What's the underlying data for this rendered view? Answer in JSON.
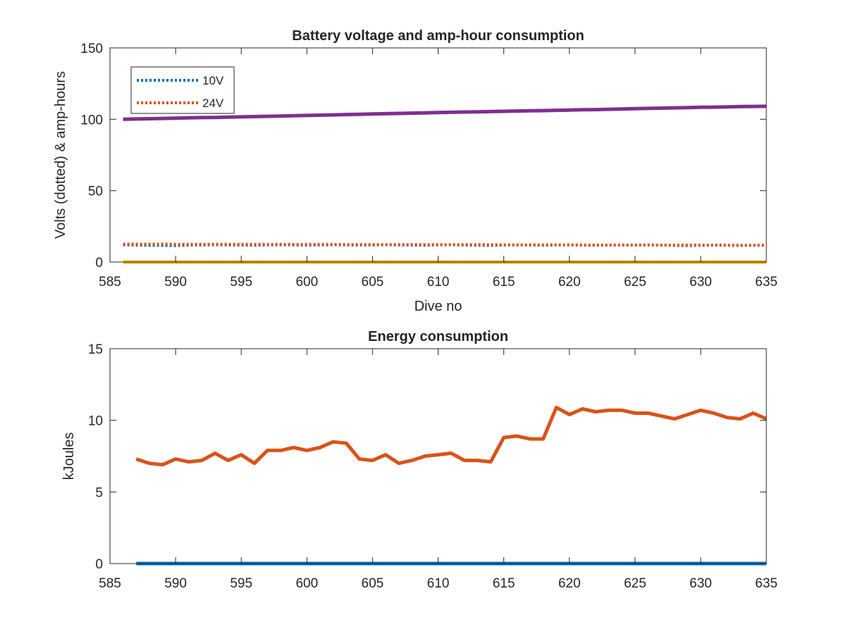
{
  "chart_data": [
    {
      "type": "line",
      "title": "Battery voltage and amp-hour consumption",
      "xlabel": "Dive no",
      "ylabel": "Volts (dotted) & amp-hours",
      "xlim": [
        585,
        635
      ],
      "ylim": [
        0,
        150
      ],
      "xticks": [
        "585",
        "590",
        "595",
        "600",
        "605",
        "610",
        "615",
        "620",
        "625",
        "630",
        "635"
      ],
      "yticks": [
        "0",
        "50",
        "100",
        "150"
      ],
      "grid": false,
      "legend_location": "top-left",
      "x": [
        586,
        587,
        588,
        589,
        590,
        591,
        592,
        593,
        594,
        595,
        596,
        597,
        598,
        599,
        600,
        601,
        602,
        603,
        604,
        605,
        606,
        607,
        608,
        609,
        610,
        611,
        612,
        613,
        614,
        615,
        616,
        617,
        618,
        619,
        620,
        621,
        622,
        623,
        624,
        625,
        626,
        627,
        628,
        629,
        630,
        631,
        632,
        633,
        634,
        635
      ],
      "series": [
        {
          "name": "10V",
          "color": "#0072BD",
          "style": "dotted",
          "values": [
            12.1,
            11.9,
            11.7,
            11.6,
            11.5,
            11.9,
            12.0,
            12.1,
            12.0,
            11.9,
            11.8,
            12.0,
            12.1,
            12.0,
            11.9,
            12.0,
            12.1,
            12.0,
            11.9,
            12.0,
            12.1,
            12.0,
            11.9,
            11.8,
            12.0,
            12.1,
            11.9,
            11.8,
            11.6,
            11.9,
            12.0,
            11.9,
            11.8,
            11.9,
            12.0,
            11.8,
            11.7,
            11.8,
            11.9,
            11.8,
            12.0,
            11.8,
            11.6,
            11.5,
            11.7,
            11.8,
            11.7,
            11.6,
            11.7,
            11.8
          ]
        },
        {
          "name": "24V",
          "color": "#D95319",
          "style": "dotted",
          "values": [
            12.6,
            12.6,
            12.6,
            12.6,
            12.5,
            12.5,
            12.5,
            12.5,
            12.5,
            12.5,
            12.5,
            12.4,
            12.4,
            12.4,
            12.4,
            12.4,
            12.4,
            12.3,
            12.3,
            12.3,
            12.3,
            12.3,
            12.3,
            12.2,
            12.2,
            12.2,
            12.2,
            12.2,
            12.2,
            12.1,
            12.1,
            12.1,
            12.1,
            12.1,
            12.1,
            12.0,
            12.0,
            12.0,
            12.0,
            12.0,
            12.0,
            11.9,
            11.9,
            11.9,
            11.9,
            11.9,
            11.9,
            11.8,
            11.8,
            11.8
          ]
        },
        {
          "color": "#EDB120",
          "style": "solid",
          "values": [
            0,
            0,
            0,
            0,
            0,
            0,
            0,
            0,
            0,
            0,
            0,
            0,
            0,
            0,
            0,
            0,
            0,
            0,
            0,
            0,
            0,
            0,
            0,
            0,
            0,
            0,
            0,
            0,
            0,
            0,
            0,
            0,
            0,
            0,
            0,
            0,
            0,
            0,
            0,
            0,
            0,
            0,
            0,
            0,
            0,
            0,
            0,
            0,
            0,
            0
          ]
        },
        {
          "color": "#7E2F8E",
          "style": "solid",
          "values": [
            100.0,
            100.2,
            100.4,
            100.6,
            100.8,
            101.0,
            101.2,
            101.3,
            101.5,
            101.7,
            101.9,
            102.1,
            102.3,
            102.5,
            102.7,
            102.9,
            103.1,
            103.3,
            103.5,
            103.7,
            103.9,
            104.1,
            104.3,
            104.5,
            104.7,
            104.9,
            105.1,
            105.2,
            105.4,
            105.6,
            105.8,
            106.0,
            106.1,
            106.3,
            106.5,
            106.7,
            106.8,
            107.0,
            107.2,
            107.4,
            107.6,
            107.8,
            108.0,
            108.2,
            108.4,
            108.5,
            108.7,
            108.9,
            109.0,
            109.1
          ]
        }
      ]
    },
    {
      "type": "line",
      "title": "Energy consumption",
      "xlabel": "",
      "ylabel": "kJoules",
      "xlim": [
        585,
        635
      ],
      "ylim": [
        0,
        15
      ],
      "xticks": [
        "585",
        "590",
        "595",
        "600",
        "605",
        "610",
        "615",
        "620",
        "625",
        "630",
        "635"
      ],
      "yticks": [
        "0",
        "5",
        "10",
        "15"
      ],
      "grid": false,
      "x": [
        587,
        588,
        589,
        590,
        591,
        592,
        593,
        594,
        595,
        596,
        597,
        598,
        599,
        600,
        601,
        602,
        603,
        604,
        605,
        606,
        607,
        608,
        609,
        610,
        611,
        612,
        613,
        614,
        615,
        616,
        617,
        618,
        619,
        620,
        621,
        622,
        623,
        624,
        625,
        626,
        627,
        628,
        629,
        630,
        631,
        632,
        633,
        634,
        635
      ],
      "series": [
        {
          "color": "#D95319",
          "style": "solid",
          "values": [
            7.3,
            7.0,
            6.9,
            7.3,
            7.1,
            7.2,
            7.7,
            7.2,
            7.6,
            7.0,
            7.9,
            7.9,
            8.1,
            7.9,
            8.1,
            8.5,
            8.4,
            7.3,
            7.2,
            7.6,
            7.0,
            7.2,
            7.5,
            7.6,
            7.7,
            7.2,
            7.2,
            7.1,
            8.8,
            8.9,
            8.7,
            8.7,
            10.9,
            10.4,
            10.8,
            10.6,
            10.7,
            10.7,
            10.5,
            10.5,
            10.3,
            10.1,
            10.4,
            10.7,
            10.5,
            10.2,
            10.1,
            10.5,
            10.1
          ]
        },
        {
          "color": "#0072BD",
          "style": "solid",
          "values": [
            0,
            0,
            0,
            0,
            0,
            0,
            0,
            0,
            0,
            0,
            0,
            0,
            0,
            0,
            0,
            0,
            0,
            0,
            0,
            0,
            0,
            0,
            0,
            0,
            0,
            0,
            0,
            0,
            0,
            0,
            0,
            0,
            0,
            0,
            0,
            0,
            0,
            0,
            0,
            0,
            0,
            0,
            0,
            0,
            0,
            0,
            0,
            0,
            0
          ]
        }
      ]
    }
  ]
}
